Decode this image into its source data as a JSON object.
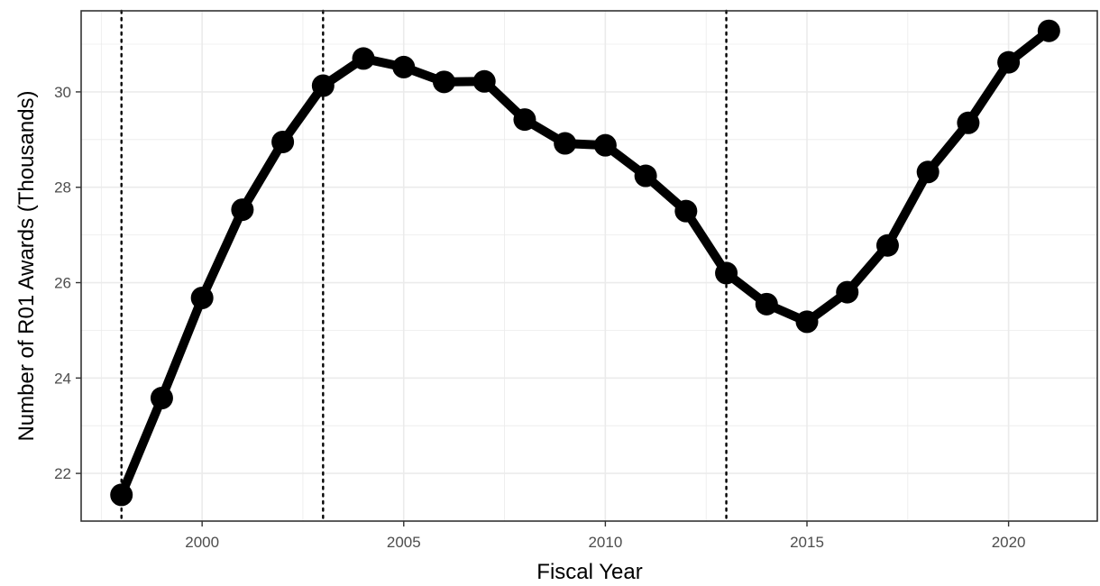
{
  "chart_data": {
    "type": "line",
    "xlabel": "Fiscal Year",
    "ylabel": "Number of R01 Awards (Thousands)",
    "xlim": [
      1997.0,
      2022.2
    ],
    "ylim": [
      21.0,
      31.7
    ],
    "x_ticks": [
      2000,
      2005,
      2010,
      2015,
      2020
    ],
    "y_ticks": [
      22,
      24,
      26,
      28,
      30
    ],
    "grid": true,
    "series_color": "#000000",
    "reference_lines_x": [
      1998,
      2003,
      2013
    ],
    "series": [
      {
        "x": [
          1998,
          1999,
          2000,
          2001,
          2002,
          2003,
          2004,
          2005,
          2006,
          2007,
          2008,
          2009,
          2010,
          2011,
          2012,
          2013,
          2014,
          2015,
          2016,
          2017,
          2018,
          2019,
          2020,
          2021
        ],
        "values": [
          21.55,
          23.58,
          25.68,
          27.53,
          28.95,
          30.13,
          30.7,
          30.52,
          30.21,
          30.22,
          29.42,
          28.92,
          28.88,
          28.24,
          27.5,
          26.2,
          25.55,
          25.18,
          25.8,
          26.78,
          28.32,
          29.35,
          30.62,
          31.28
        ]
      }
    ]
  }
}
